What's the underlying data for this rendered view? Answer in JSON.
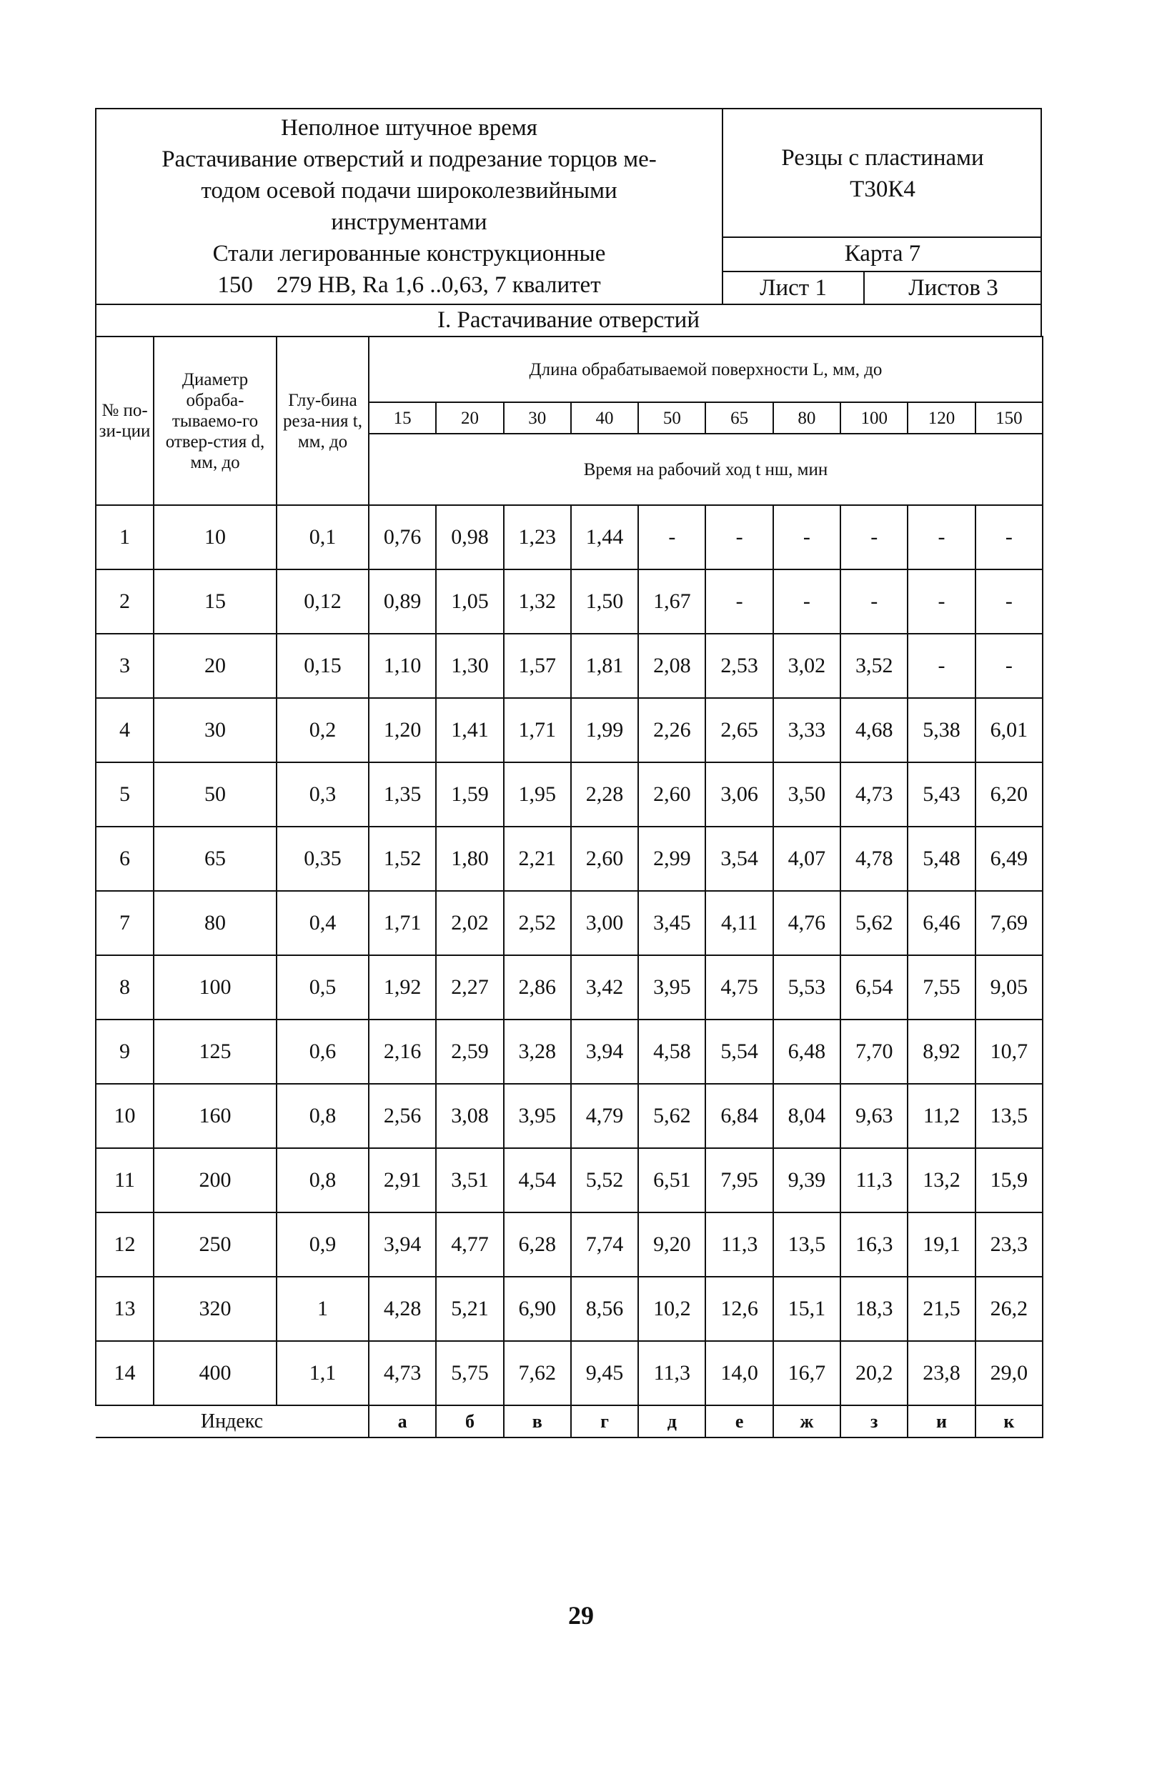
{
  "header": {
    "title_lines": [
      "Неполное штучное время",
      "Растачивание отверстий и подрезание торцов ме-",
      "тодом осевой подачи широколезвийными",
      "инструментами",
      "Стали легированные конструкционные",
      "150    279 HB, Ra 1,6 ..0,63, 7 квалитет"
    ],
    "tool_lines": [
      "Резцы с пластинами",
      "Т30К4"
    ],
    "card": "Карта 7",
    "sheet": "Лист 1",
    "sheets_total": "Листов 3"
  },
  "section_title": "I. Растачивание отверстий",
  "columns": {
    "position": "№ по-зи-ции",
    "diameter": "Диаметр обраба-тываемо-го отвер-стия d, мм, до",
    "depth": "Глу-бина реза-ния t, мм, до",
    "length_header": "Длина обрабатываемой поверхности L, мм, до",
    "lengths": [
      "15",
      "20",
      "30",
      "40",
      "50",
      "65",
      "80",
      "100",
      "120",
      "150"
    ],
    "time_header": "Время на рабочий ход t нш, мин"
  },
  "rows": [
    {
      "pos": "1",
      "d": "10",
      "t": "0,1",
      "times": [
        "0,76",
        "0,98",
        "1,23",
        "1,44",
        "-",
        "-",
        "-",
        "-",
        "-",
        "-"
      ]
    },
    {
      "pos": "2",
      "d": "15",
      "t": "0,12",
      "times": [
        "0,89",
        "1,05",
        "1,32",
        "1,50",
        "1,67",
        "-",
        "-",
        "-",
        "-",
        "-"
      ]
    },
    {
      "pos": "3",
      "d": "20",
      "t": "0,15",
      "times": [
        "1,10",
        "1,30",
        "1,57",
        "1,81",
        "2,08",
        "2,53",
        "3,02",
        "3,52",
        "-",
        "-"
      ]
    },
    {
      "pos": "4",
      "d": "30",
      "t": "0,2",
      "times": [
        "1,20",
        "1,41",
        "1,71",
        "1,99",
        "2,26",
        "2,65",
        "3,33",
        "4,68",
        "5,38",
        "6,01"
      ]
    },
    {
      "pos": "5",
      "d": "50",
      "t": "0,3",
      "times": [
        "1,35",
        "1,59",
        "1,95",
        "2,28",
        "2,60",
        "3,06",
        "3,50",
        "4,73",
        "5,43",
        "6,20"
      ]
    },
    {
      "pos": "6",
      "d": "65",
      "t": "0,35",
      "times": [
        "1,52",
        "1,80",
        "2,21",
        "2,60",
        "2,99",
        "3,54",
        "4,07",
        "4,78",
        "5,48",
        "6,49"
      ]
    },
    {
      "pos": "7",
      "d": "80",
      "t": "0,4",
      "times": [
        "1,71",
        "2,02",
        "2,52",
        "3,00",
        "3,45",
        "4,11",
        "4,76",
        "5,62",
        "6,46",
        "7,69"
      ]
    },
    {
      "pos": "8",
      "d": "100",
      "t": "0,5",
      "times": [
        "1,92",
        "2,27",
        "2,86",
        "3,42",
        "3,95",
        "4,75",
        "5,53",
        "6,54",
        "7,55",
        "9,05"
      ]
    },
    {
      "pos": "9",
      "d": "125",
      "t": "0,6",
      "times": [
        "2,16",
        "2,59",
        "3,28",
        "3,94",
        "4,58",
        "5,54",
        "6,48",
        "7,70",
        "8,92",
        "10,7"
      ]
    },
    {
      "pos": "10",
      "d": "160",
      "t": "0,8",
      "times": [
        "2,56",
        "3,08",
        "3,95",
        "4,79",
        "5,62",
        "6,84",
        "8,04",
        "9,63",
        "11,2",
        "13,5"
      ]
    },
    {
      "pos": "11",
      "d": "200",
      "t": "0,8",
      "times": [
        "2,91",
        "3,51",
        "4,54",
        "5,52",
        "6,51",
        "7,95",
        "9,39",
        "11,3",
        "13,2",
        "15,9"
      ]
    },
    {
      "pos": "12",
      "d": "250",
      "t": "0,9",
      "times": [
        "3,94",
        "4,77",
        "6,28",
        "7,74",
        "9,20",
        "11,3",
        "13,5",
        "16,3",
        "19,1",
        "23,3"
      ]
    },
    {
      "pos": "13",
      "d": "320",
      "t": "1",
      "times": [
        "4,28",
        "5,21",
        "6,90",
        "8,56",
        "10,2",
        "12,6",
        "15,1",
        "18,3",
        "21,5",
        "26,2"
      ]
    },
    {
      "pos": "14",
      "d": "400",
      "t": "1,1",
      "times": [
        "4,73",
        "5,75",
        "7,62",
        "9,45",
        "11,3",
        "14,0",
        "16,7",
        "20,2",
        "23,8",
        "29,0"
      ]
    }
  ],
  "index": {
    "label": "Индекс",
    "letters": [
      "а",
      "б",
      "в",
      "г",
      "д",
      "е",
      "ж",
      "з",
      "и",
      "к"
    ]
  },
  "page_number": "29"
}
